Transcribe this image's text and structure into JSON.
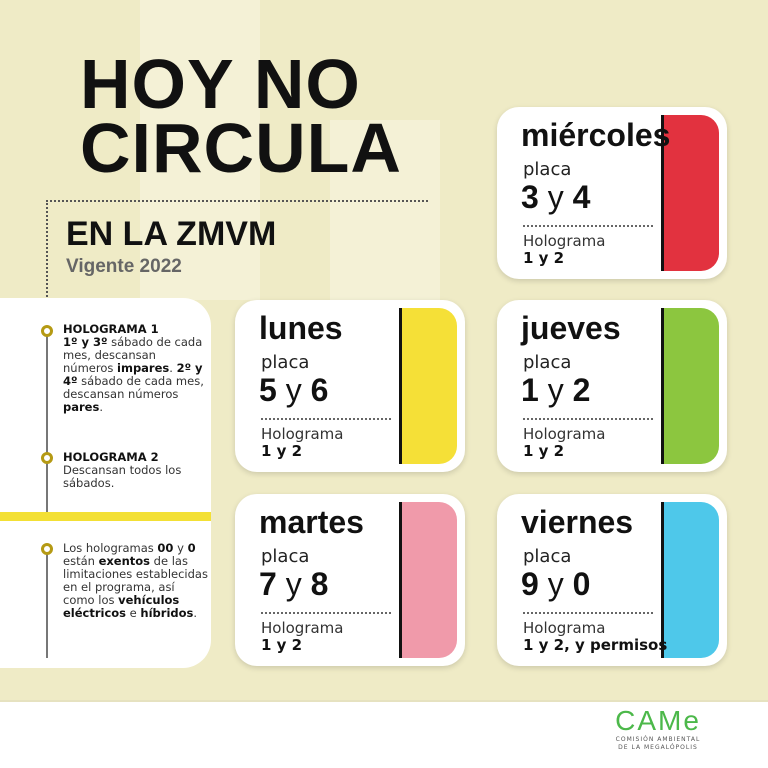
{
  "header": {
    "title_line1": "HOY NO",
    "title_line2": "CIRCULA",
    "subtitle": "EN LA ZMVM",
    "validity": "Vigente 2022"
  },
  "notes": [
    {
      "heading": "HOLOGRAMA 1",
      "segments": [
        {
          "t": "1º y 3º",
          "b": true
        },
        {
          "t": " sábado de cada mes, descansan números ",
          "b": false
        },
        {
          "t": "impares",
          "b": true
        },
        {
          "t": ". ",
          "b": false
        },
        {
          "t": "2º y 4º",
          "b": true
        },
        {
          "t": " sábado de cada mes, descansan números ",
          "b": false
        },
        {
          "t": "pares",
          "b": true
        },
        {
          "t": ".",
          "b": false
        }
      ]
    },
    {
      "heading": "HOLOGRAMA 2",
      "segments": [
        {
          "t": "Descansan todos los sábados.",
          "b": false
        }
      ]
    },
    {
      "heading": "",
      "segments": [
        {
          "t": "Los hologramas ",
          "b": false
        },
        {
          "t": "00",
          "b": true
        },
        {
          "t": " y ",
          "b": false
        },
        {
          "t": "0",
          "b": true
        },
        {
          "t": " están ",
          "b": false
        },
        {
          "t": "exentos",
          "b": true
        },
        {
          "t": " de las limitaciones establecidas en el programa, así como los ",
          "b": false
        },
        {
          "t": "vehículos eléctricos",
          "b": true
        },
        {
          "t": " e ",
          "b": false
        },
        {
          "t": "híbridos",
          "b": true
        },
        {
          "t": ".",
          "b": false
        }
      ]
    }
  ],
  "cards": [
    {
      "day": "miércoles",
      "placa_label": "placa",
      "n1": "3",
      "y": "y",
      "n2": "4",
      "holo_label": "Holograma",
      "holo_value": "1 y 2",
      "color": "#e2323f"
    },
    {
      "day": "lunes",
      "placa_label": "placa",
      "n1": "5",
      "y": "y",
      "n2": "6",
      "holo_label": "Holograma",
      "holo_value": "1 y 2",
      "color": "#f5e037"
    },
    {
      "day": "jueves",
      "placa_label": "placa",
      "n1": "1",
      "y": "y",
      "n2": "2",
      "holo_label": "Holograma",
      "holo_value": "1 y 2",
      "color": "#8cc63f"
    },
    {
      "day": "martes",
      "placa_label": "placa",
      "n1": "7",
      "y": "y",
      "n2": "8",
      "holo_label": "Holograma",
      "holo_value": "1 y 2",
      "color": "#f09aaa"
    },
    {
      "day": "viernes",
      "placa_label": "placa",
      "n1": "9",
      "y": "y",
      "n2": "0",
      "holo_label": "Holograma",
      "holo_value": "1 y 2, y permisos",
      "color": "#4ec8ea"
    }
  ],
  "footer": {
    "logo_text": "CAMe",
    "logo_caption_1": "COMISIÓN AMBIENTAL",
    "logo_caption_2": "DE LA MEGALÓPOLIS"
  }
}
